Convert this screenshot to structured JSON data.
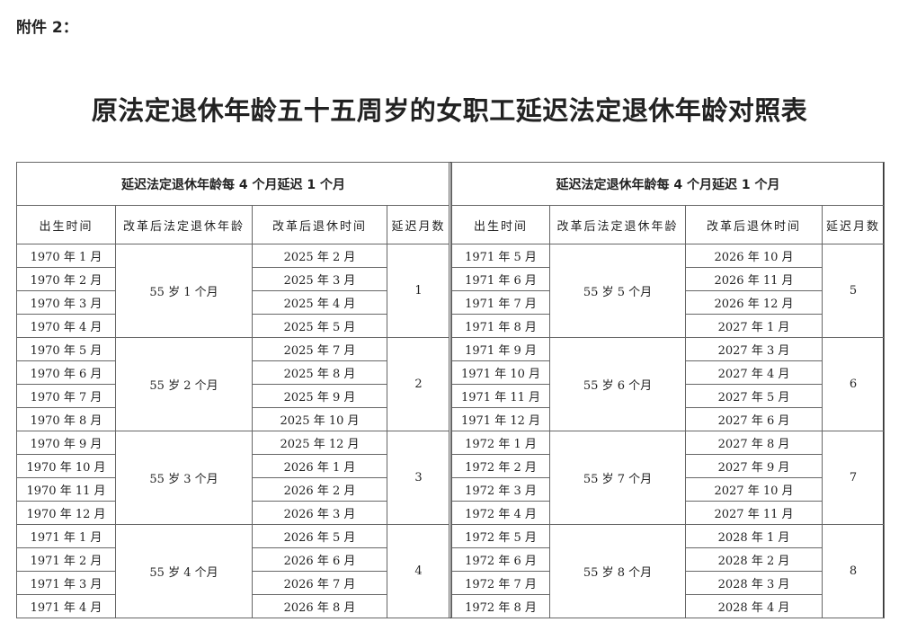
{
  "attachment": "附件 2：",
  "title": "原法定退休年龄五十五周岁的女职工延迟法定退休年龄对照表",
  "tables": [
    {
      "caption": "延迟法定退休年龄每 4 个月延迟 1 个月",
      "headers": [
        "出生时间",
        "改革后法定退休年龄",
        "改革后退休时间",
        "延迟月数"
      ],
      "groups": [
        {
          "age": "55 岁 1 个月",
          "delay": "1",
          "rows": [
            [
              "1970 年 1 月",
              "2025 年 2 月"
            ],
            [
              "1970 年 2 月",
              "2025 年 3 月"
            ],
            [
              "1970 年 3 月",
              "2025 年 4 月"
            ],
            [
              "1970 年 4 月",
              "2025 年 5 月"
            ]
          ]
        },
        {
          "age": "55 岁 2 个月",
          "delay": "2",
          "rows": [
            [
              "1970 年 5 月",
              "2025 年 7 月"
            ],
            [
              "1970 年 6 月",
              "2025 年 8 月"
            ],
            [
              "1970 年 7 月",
              "2025 年 9 月"
            ],
            [
              "1970 年 8 月",
              "2025 年 10 月"
            ]
          ]
        },
        {
          "age": "55 岁 3 个月",
          "delay": "3",
          "rows": [
            [
              "1970 年 9 月",
              "2025 年 12 月"
            ],
            [
              "1970 年 10 月",
              "2026 年 1 月"
            ],
            [
              "1970 年 11 月",
              "2026 年 2 月"
            ],
            [
              "1970 年 12 月",
              "2026 年 3 月"
            ]
          ]
        },
        {
          "age": "55 岁 4 个月",
          "delay": "4",
          "rows": [
            [
              "1971 年 1 月",
              "2026 年 5 月"
            ],
            [
              "1971 年 2 月",
              "2026 年 6 月"
            ],
            [
              "1971 年 3 月",
              "2026 年 7 月"
            ],
            [
              "1971 年 4 月",
              "2026 年 8 月"
            ]
          ]
        }
      ]
    },
    {
      "caption": "延迟法定退休年龄每 4 个月延迟 1 个月",
      "headers": [
        "出生时间",
        "改革后法定退休年龄",
        "改革后退休时间",
        "延迟月数"
      ],
      "groups": [
        {
          "age": "55 岁 5 个月",
          "delay": "5",
          "rows": [
            [
              "1971 年 5 月",
              "2026 年 10 月"
            ],
            [
              "1971 年 6 月",
              "2026 年 11 月"
            ],
            [
              "1971 年 7 月",
              "2026 年 12 月"
            ],
            [
              "1971 年 8 月",
              "2027 年 1 月"
            ]
          ]
        },
        {
          "age": "55 岁 6 个月",
          "delay": "6",
          "rows": [
            [
              "1971 年 9 月",
              "2027 年 3 月"
            ],
            [
              "1971 年 10 月",
              "2027 年 4 月"
            ],
            [
              "1971 年 11 月",
              "2027 年 5 月"
            ],
            [
              "1971 年 12 月",
              "2027 年 6 月"
            ]
          ]
        },
        {
          "age": "55 岁 7 个月",
          "delay": "7",
          "rows": [
            [
              "1972 年 1 月",
              "2027 年 8 月"
            ],
            [
              "1972 年 2 月",
              "2027 年 9 月"
            ],
            [
              "1972 年 3 月",
              "2027 年 10 月"
            ],
            [
              "1972 年 4 月",
              "2027 年 11 月"
            ]
          ]
        },
        {
          "age": "55 岁 8 个月",
          "delay": "8",
          "rows": [
            [
              "1972 年 5 月",
              "2028 年 1 月"
            ],
            [
              "1972 年 6 月",
              "2028 年 2 月"
            ],
            [
              "1972 年 7 月",
              "2028 年 3 月"
            ],
            [
              "1972 年 8 月",
              "2028 年 4 月"
            ]
          ]
        }
      ]
    }
  ]
}
